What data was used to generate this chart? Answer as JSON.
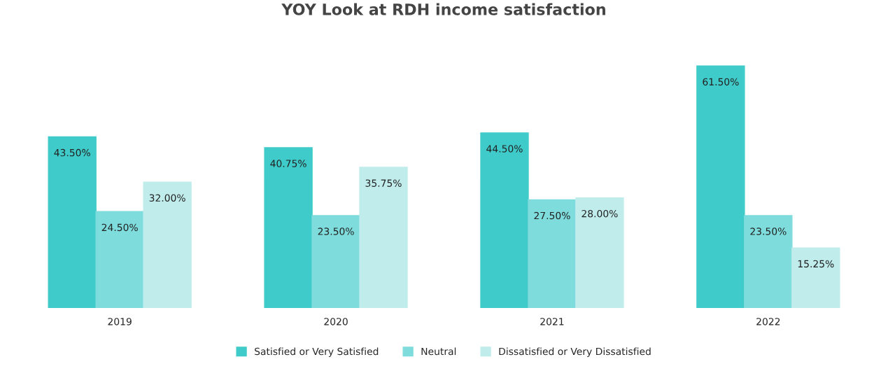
{
  "chart_data": {
    "type": "bar",
    "title": "YOY Look at RDH income satisfaction",
    "categories": [
      "2019",
      "2020",
      "2021",
      "2022"
    ],
    "series": [
      {
        "name": "Satisfied or Very Satisfied",
        "color": "#3fcbc9",
        "values": [
          43.5,
          40.75,
          44.5,
          61.5
        ],
        "value_labels": [
          "43.50%",
          "40.75%",
          "44.50%",
          "61.50%"
        ]
      },
      {
        "name": "Neutral",
        "color": "#7fdcdc",
        "values": [
          24.5,
          23.5,
          27.5,
          23.5
        ],
        "value_labels": [
          "24.50%",
          "23.50%",
          "27.50%",
          "23.50%"
        ]
      },
      {
        "name": "Dissatisfied or Very Dissatisfied",
        "color": "#c0ecec",
        "values": [
          32.0,
          35.75,
          28.0,
          15.25
        ],
        "value_labels": [
          "32.00%",
          "35.75%",
          "28.00%",
          "15.25%"
        ]
      }
    ],
    "legend": "bottom",
    "grid": false
  }
}
